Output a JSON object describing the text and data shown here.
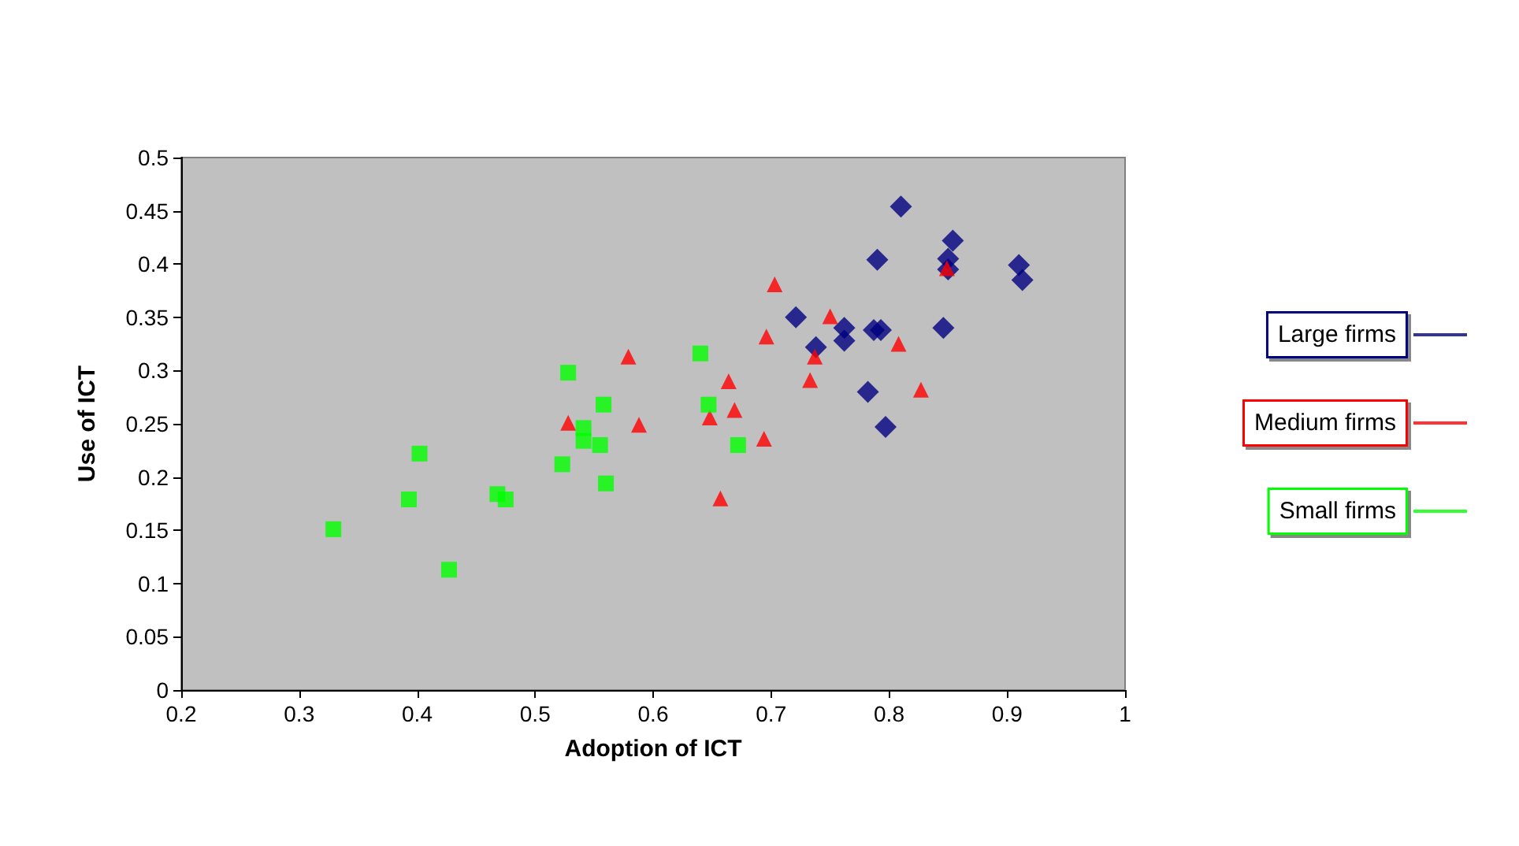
{
  "chart_data": {
    "type": "scatter",
    "xlabel": "Adoption of ICT",
    "ylabel": "Use of ICT",
    "xlim": [
      0.2,
      1
    ],
    "xticks": [
      0.2,
      0.3,
      0.4,
      0.5,
      0.6,
      0.7,
      0.8,
      0.9,
      1
    ],
    "ylim": [
      0,
      0.5
    ],
    "yticks": [
      0,
      0.05,
      0.1,
      0.15,
      0.2,
      0.25,
      0.3,
      0.35,
      0.4,
      0.45,
      0.5
    ],
    "grid": false,
    "legend": "right",
    "series": [
      {
        "name": "Large firms",
        "color": "#000080",
        "marker": "diamond",
        "x": [
          0.81,
          0.854,
          0.79,
          0.85,
          0.85,
          0.91,
          0.913,
          0.721,
          0.762,
          0.762,
          0.738,
          0.787,
          0.793,
          0.846,
          0.782,
          0.797
        ],
        "values": [
          0.454,
          0.422,
          0.404,
          0.405,
          0.395,
          0.399,
          0.385,
          0.35,
          0.34,
          0.328,
          0.322,
          0.338,
          0.338,
          0.34,
          0.28,
          0.247
        ]
      },
      {
        "name": "Medium firms",
        "color": "#ff0000",
        "marker": "triangle",
        "x": [
          0.703,
          0.75,
          0.696,
          0.849,
          0.808,
          0.737,
          0.733,
          0.827,
          0.664,
          0.669,
          0.648,
          0.694,
          0.657,
          0.579,
          0.528,
          0.588
        ],
        "values": [
          0.381,
          0.351,
          0.332,
          0.396,
          0.325,
          0.313,
          0.291,
          0.282,
          0.29,
          0.263,
          0.256,
          0.236,
          0.18,
          0.313,
          0.251,
          0.249
        ]
      },
      {
        "name": "Small firms",
        "color": "#00ff00",
        "marker": "square",
        "x": [
          0.329,
          0.427,
          0.393,
          0.402,
          0.468,
          0.475,
          0.523,
          0.528,
          0.541,
          0.541,
          0.555,
          0.558,
          0.56,
          0.64,
          0.647,
          0.672
        ],
        "values": [
          0.151,
          0.113,
          0.179,
          0.222,
          0.184,
          0.179,
          0.212,
          0.298,
          0.246,
          0.234,
          0.23,
          0.268,
          0.194,
          0.316,
          0.268,
          0.23
        ]
      }
    ]
  }
}
